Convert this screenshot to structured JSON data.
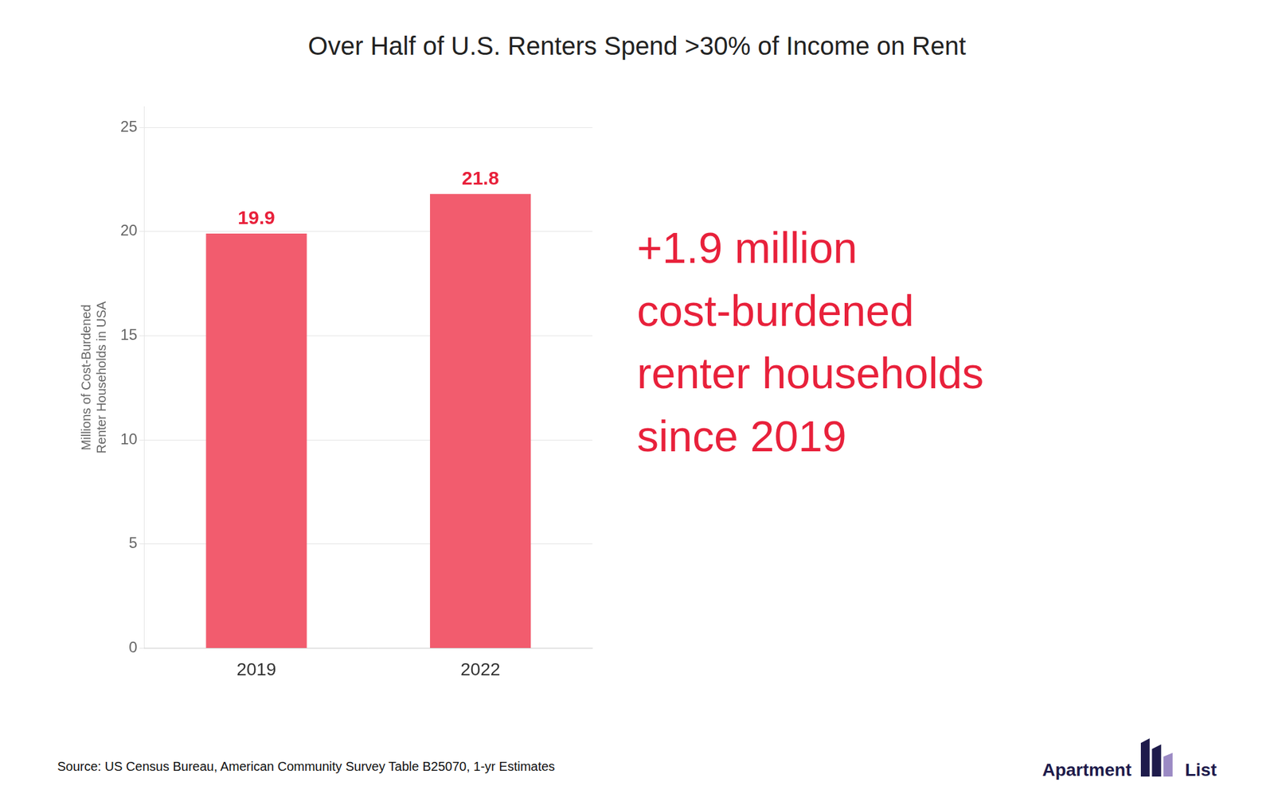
{
  "chart_data": {
    "type": "bar",
    "title": "Over Half of U.S. Renters Spend >30% of Income on Rent",
    "categories": [
      "2019",
      "2022"
    ],
    "values": [
      19.9,
      21.8
    ],
    "color": "#F25C6E",
    "ylabel": "Millions of Cost-Burdened\nRenter Households in USA",
    "ylim": [
      0,
      26
    ],
    "yticks": [
      0,
      5,
      10,
      15,
      20,
      25
    ],
    "grid": true,
    "legend": false,
    "data_labels": true,
    "annotations": [
      {
        "text": "+1.9 million\ncost-burdened\nrenter households\nsince 2019",
        "color": "#E8213B"
      }
    ],
    "source": "Source: US Census Bureau, American Community Survey Table B25070, 1-yr Estimates",
    "logo": [
      "Apartment",
      "List"
    ]
  }
}
